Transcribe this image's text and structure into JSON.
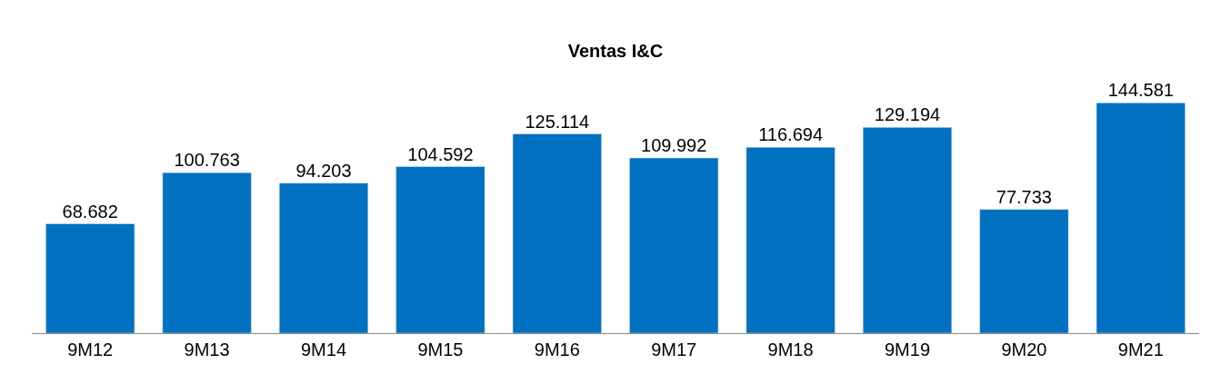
{
  "chart_data": {
    "type": "bar",
    "title": "Ventas I&C",
    "categories": [
      "9M12",
      "9M13",
      "9M14",
      "9M15",
      "9M16",
      "9M17",
      "9M18",
      "9M19",
      "9M20",
      "9M21"
    ],
    "values": [
      68682,
      100763,
      94203,
      104592,
      125114,
      109992,
      116694,
      129194,
      77733,
      144581
    ],
    "value_labels": [
      "68.682",
      "100.763",
      "94.203",
      "104.592",
      "125.114",
      "109.992",
      "116.694",
      "129.194",
      "77.733",
      "144.581"
    ],
    "color": "#0070c0",
    "tick_labels": "x"
  }
}
